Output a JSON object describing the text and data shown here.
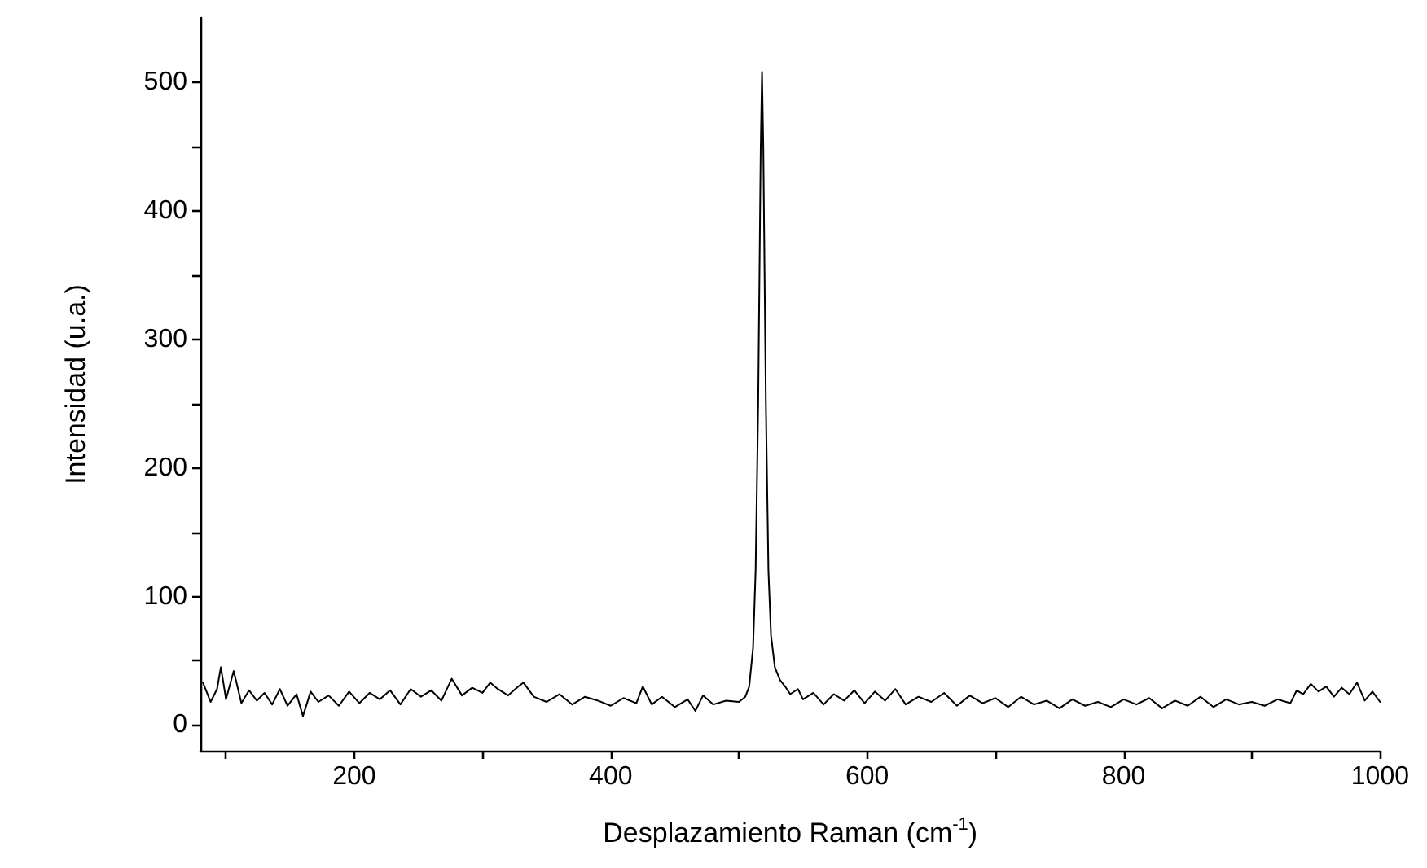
{
  "chart_data": {
    "type": "line",
    "xlabel": "Desplazamiento Raman (cm$^{-1}$)",
    "ylabel": "Intensidad (u.a.)",
    "x": [
      82,
      88,
      93,
      96,
      100,
      106,
      112,
      118,
      124,
      130,
      136,
      142,
      148,
      155,
      160,
      166,
      172,
      180,
      188,
      196,
      204,
      212,
      220,
      228,
      236,
      244,
      252,
      260,
      268,
      276,
      284,
      292,
      300,
      306,
      312,
      320,
      328,
      332,
      340,
      350,
      360,
      370,
      380,
      390,
      400,
      410,
      420,
      425,
      432,
      440,
      450,
      460,
      466,
      472,
      480,
      490,
      500,
      505,
      508,
      511,
      513,
      515,
      517,
      518,
      519,
      521,
      523,
      525,
      528,
      532,
      536,
      540,
      546,
      550,
      558,
      566,
      574,
      582,
      590,
      598,
      606,
      614,
      622,
      630,
      640,
      650,
      660,
      670,
      680,
      690,
      700,
      710,
      720,
      730,
      740,
      750,
      760,
      770,
      780,
      790,
      800,
      810,
      820,
      830,
      840,
      850,
      860,
      870,
      880,
      890,
      900,
      910,
      920,
      930,
      935,
      940,
      946,
      952,
      958,
      964,
      970,
      976,
      982,
      988,
      994,
      1000
    ],
    "series": [
      {
        "color": "#000000",
        "values": [
          33,
          18,
          28,
          45,
          20,
          42,
          17,
          27,
          19,
          25,
          16,
          28,
          15,
          24,
          7,
          26,
          18,
          23,
          15,
          26,
          17,
          25,
          20,
          27,
          16,
          28,
          22,
          27,
          19,
          36,
          23,
          29,
          25,
          33,
          28,
          23,
          30,
          33,
          22,
          18,
          24,
          16,
          22,
          19,
          15,
          21,
          17,
          30,
          16,
          22,
          14,
          20,
          11,
          23,
          16,
          19,
          18,
          22,
          30,
          60,
          120,
          250,
          450,
          508,
          450,
          250,
          120,
          70,
          45,
          35,
          30,
          24,
          28,
          20,
          25,
          16,
          24,
          19,
          27,
          17,
          26,
          19,
          28,
          16,
          22,
          18,
          25,
          15,
          23,
          17,
          21,
          14,
          22,
          16,
          19,
          13,
          20,
          15,
          18,
          14,
          20,
          16,
          21,
          13,
          19,
          15,
          22,
          14,
          20,
          16,
          18,
          15,
          20,
          17,
          27,
          24,
          32,
          26,
          30,
          22,
          29,
          24,
          33,
          19,
          26,
          18
        ]
      }
    ],
    "xlim": [
      80,
      1000
    ],
    "xticks": [
      {
        "value": 100,
        "label": null
      },
      200,
      {
        "value": 300,
        "label": null
      },
      400,
      {
        "value": 500,
        "label": null
      },
      600,
      {
        "value": 700,
        "label": null
      },
      800,
      {
        "value": 900,
        "label": null
      },
      1000
    ],
    "ylim": [
      -20,
      550
    ],
    "yticks": [
      0,
      {
        "value": 50,
        "label": null
      },
      100,
      {
        "value": 150,
        "label": null
      },
      200,
      {
        "value": 250,
        "label": null
      },
      300,
      {
        "value": 350,
        "label": null
      },
      400,
      {
        "value": 450,
        "label": null
      },
      500
    ],
    "grid": false,
    "marker": "none",
    "line_style": "solid"
  }
}
